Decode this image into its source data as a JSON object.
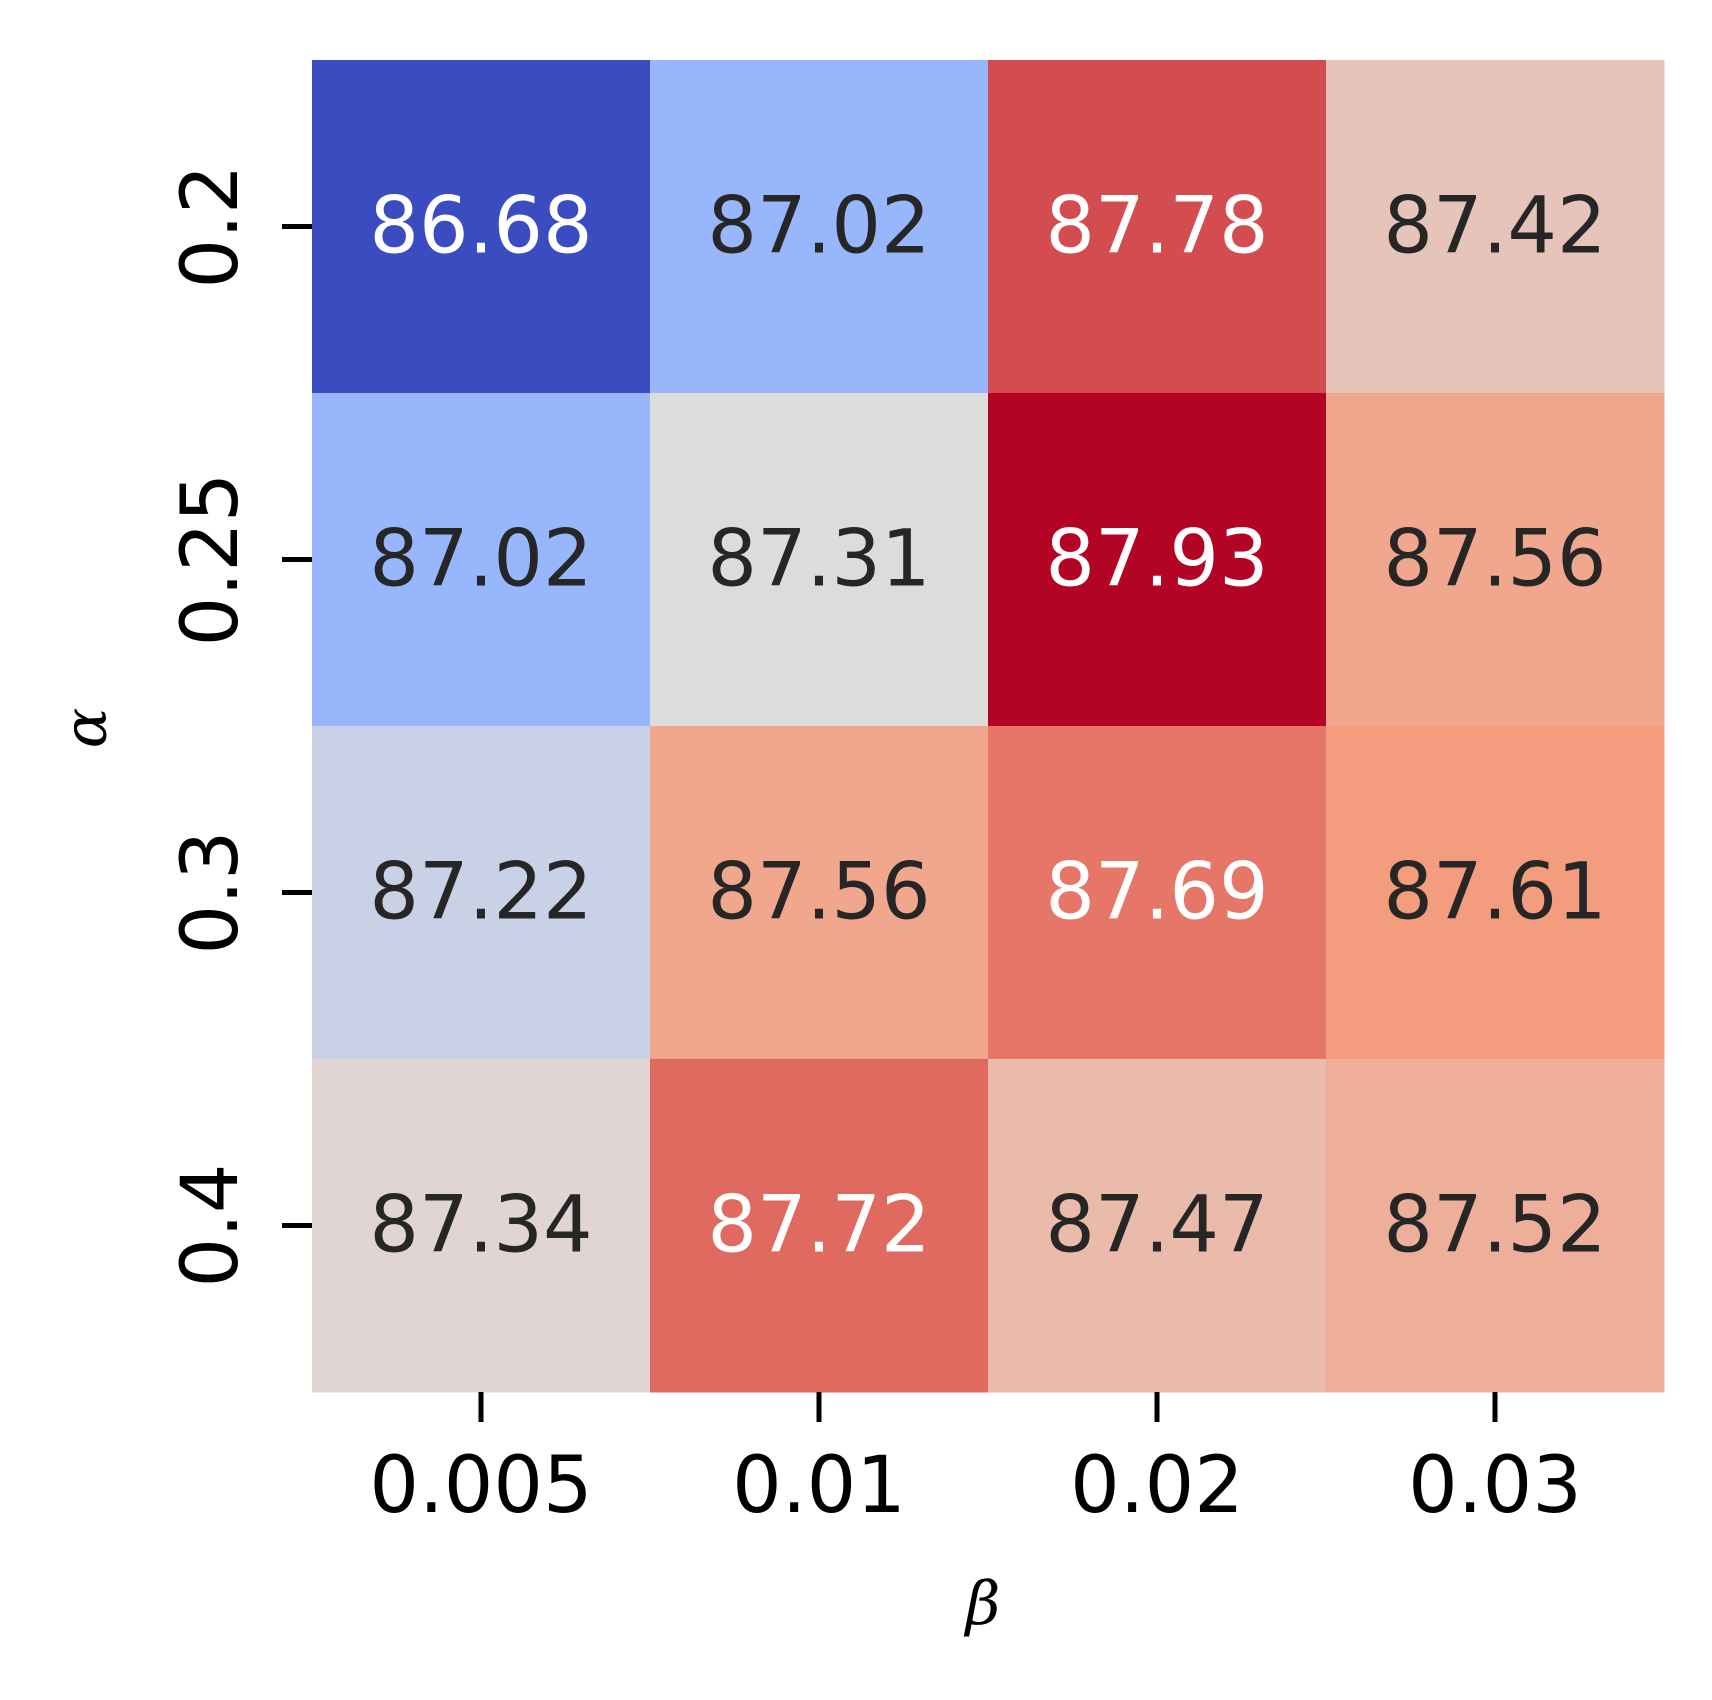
{
  "chart_data": {
    "type": "heatmap",
    "xlabel": "β",
    "ylabel": "α",
    "x_categories": [
      "0.005",
      "0.01",
      "0.02",
      "0.03"
    ],
    "y_categories": [
      "0.2",
      "0.25",
      "0.3",
      "0.4"
    ],
    "values": [
      [
        86.68,
        87.02,
        87.78,
        87.42
      ],
      [
        87.02,
        87.31,
        87.93,
        87.56
      ],
      [
        87.22,
        87.56,
        87.69,
        87.61
      ],
      [
        87.34,
        87.72,
        87.47,
        87.52
      ]
    ],
    "value_labels": [
      [
        "86.68",
        "87.02",
        "87.78",
        "87.42"
      ],
      [
        "87.02",
        "87.31",
        "87.93",
        "87.56"
      ],
      [
        "87.22",
        "87.56",
        "87.69",
        "87.61"
      ],
      [
        "87.34",
        "87.72",
        "87.47",
        "87.52"
      ]
    ],
    "colormap": "coolwarm",
    "colorbar": false,
    "vmin": 86.68,
    "vmax": 87.93,
    "text_color_dark": "#262626",
    "text_color_light": "#ffffff"
  }
}
